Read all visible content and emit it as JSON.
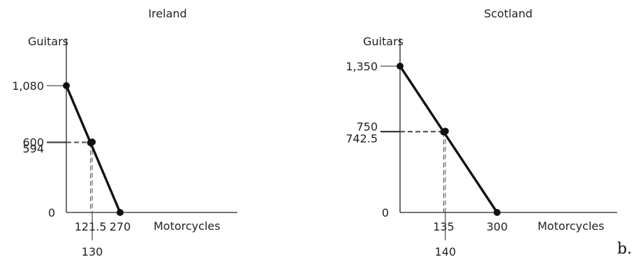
{
  "suffix": "b.",
  "chart_data": [
    {
      "type": "line",
      "title": "Ireland",
      "ylabel": "Guitars",
      "xlabel": "Motorcycles",
      "origin_label": "0",
      "line": {
        "x": [
          0,
          270
        ],
        "y": [
          1080,
          0
        ]
      },
      "points": [
        {
          "x": 0,
          "y": 1080
        },
        {
          "x": 121.5,
          "y": 594
        },
        {
          "x": 130,
          "y": 600
        },
        {
          "x": 270,
          "y": 0
        }
      ],
      "y_ticks": [
        {
          "value": 1080,
          "label": "1,080"
        },
        {
          "value": 600,
          "label": "600"
        },
        {
          "value": 594,
          "label": "594"
        }
      ],
      "x_ticks": [
        {
          "value": 121.5,
          "label": "121.5"
        },
        {
          "value": 270,
          "label": "270"
        }
      ],
      "x_ticks_below": [
        {
          "value": 130,
          "label": "130"
        }
      ],
      "dashed_guides": [
        {
          "x": 121.5,
          "y": 594
        },
        {
          "x": 130,
          "y": 600
        }
      ]
    },
    {
      "type": "line",
      "title": "Scotland",
      "ylabel": "Guitars",
      "xlabel": "Motorcycles",
      "origin_label": "0",
      "line": {
        "x": [
          0,
          300
        ],
        "y": [
          1350,
          0
        ]
      },
      "points": [
        {
          "x": 0,
          "y": 1350
        },
        {
          "x": 135,
          "y": 742.5
        },
        {
          "x": 140,
          "y": 750
        },
        {
          "x": 300,
          "y": 0
        }
      ],
      "y_ticks": [
        {
          "value": 1350,
          "label": "1,350"
        },
        {
          "value": 750,
          "label": "750"
        },
        {
          "value": 742.5,
          "label": "742.5"
        }
      ],
      "x_ticks": [
        {
          "value": 135,
          "label": "135"
        },
        {
          "value": 300,
          "label": "300"
        }
      ],
      "x_ticks_below": [
        {
          "value": 140,
          "label": "140"
        }
      ],
      "dashed_guides": [
        {
          "x": 135,
          "y": 742.5
        },
        {
          "x": 140,
          "y": 750
        }
      ]
    }
  ]
}
